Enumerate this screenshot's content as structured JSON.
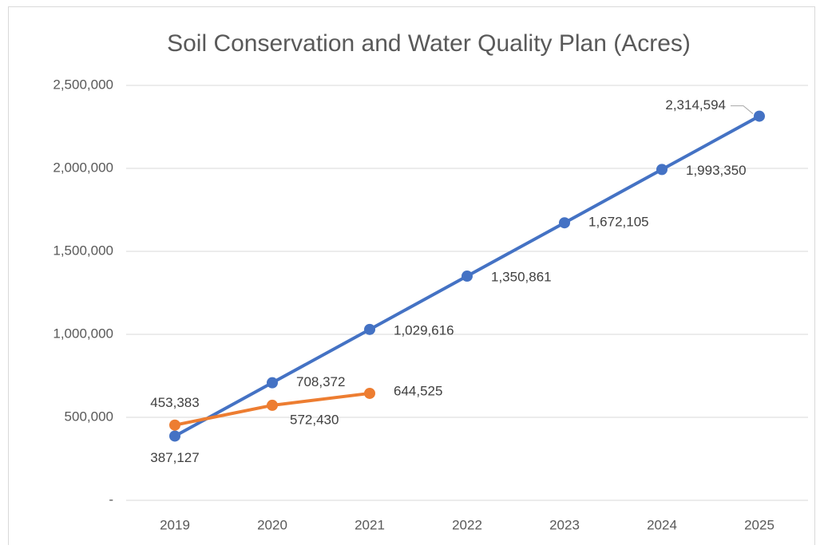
{
  "chart_data": {
    "type": "line",
    "title": "Soil Conservation and Water Quality Plan (Acres)",
    "categories": [
      "2019",
      "2020",
      "2021",
      "2022",
      "2023",
      "2024",
      "2025"
    ],
    "series": [
      {
        "color": "#4472c4",
        "values": [
          387127,
          708372,
          1029616,
          1350861,
          1672105,
          1993350,
          2314594
        ],
        "value_labels": [
          "387,127",
          "708,372",
          "1,029,616",
          "1,350,861",
          "1,672,105",
          "1,993,350",
          "2,314,594"
        ]
      },
      {
        "color": "#ed7d31",
        "values": [
          453383,
          572430,
          644525,
          null,
          null,
          null,
          null
        ],
        "value_labels": [
          "453,383",
          "572,430",
          "644,525",
          null,
          null,
          null,
          null
        ]
      }
    ],
    "ylim": [
      0,
      2500000
    ],
    "yticks": [
      {
        "value": 0,
        "label": "-"
      },
      {
        "value": 500000,
        "label": "500,000"
      },
      {
        "value": 1000000,
        "label": "1,000,000"
      },
      {
        "value": 1500000,
        "label": "1,500,000"
      },
      {
        "value": 2000000,
        "label": "2,000,000"
      },
      {
        "value": 2500000,
        "label": "2,500,000"
      }
    ],
    "grid": true
  }
}
